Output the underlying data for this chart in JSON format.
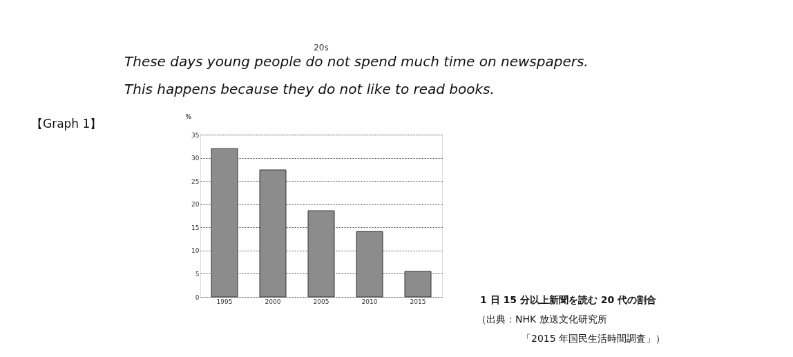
{
  "chart_data": {
    "type": "bar",
    "title": "20s",
    "ylabel": "%",
    "categories": [
      "1995",
      "2000",
      "2005",
      "2010",
      "2015"
    ],
    "values": [
      32.0,
      27.4,
      18.6,
      14.1,
      5.5
    ],
    "color": "#8c8c8c",
    "ylim": [
      0,
      35
    ],
    "yticks": [
      0,
      5,
      10,
      15,
      20,
      25,
      30,
      35
    ],
    "grid": "y",
    "annotations": [
      "These days young people do not spend much time on newspapers.",
      "This happens because they do not like to read books.",
      "【Graph 1】",
      "1 日 15 分以上新聞を読む 20 代の割合",
      "（出典：NHK 放送文化研究所",
      "「2015 年国民生活時間調査」）"
    ]
  }
}
